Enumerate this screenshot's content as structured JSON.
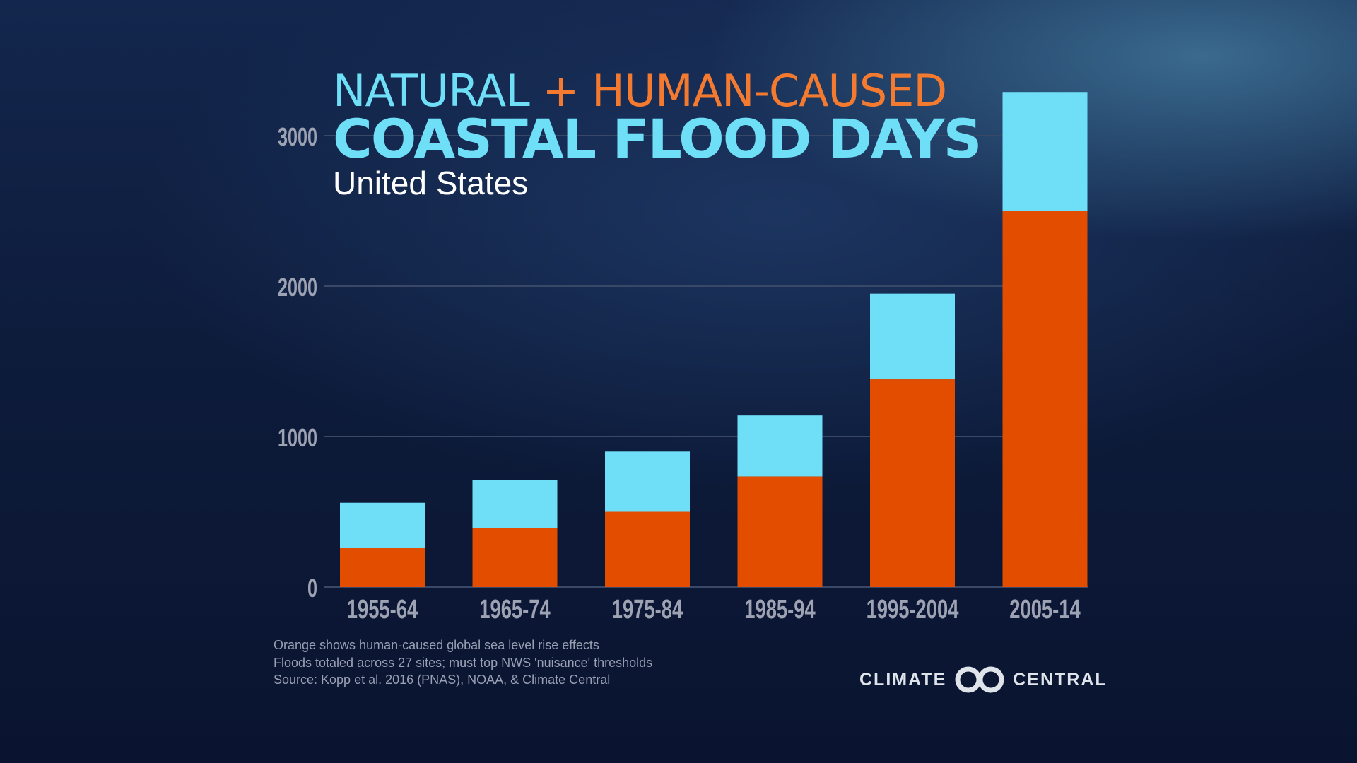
{
  "title": {
    "part1": "NATURAL",
    "plus": "+",
    "part2": "HUMAN-CAUSED",
    "main": "COASTAL FLOOD DAYS",
    "subtitle": "United States"
  },
  "notes": [
    "Orange shows human-caused global sea level rise effects",
    "Floods totaled across 27 sites; must top NWS 'nuisance' thresholds",
    "Source: Kopp et al. 2016 (PNAS), NOAA, & Climate Central"
  ],
  "logo": {
    "left": "CLIMATE",
    "right": "CENTRAL"
  },
  "colors": {
    "natural": "#6fdff7",
    "human": "#e34d00",
    "grid": "#3a4868",
    "tick": "#9ea3b3"
  },
  "chart_data": {
    "type": "bar",
    "stacked": true,
    "title": "COASTAL FLOOD DAYS",
    "categories": [
      "1955-64",
      "1965-74",
      "1975-84",
      "1985-94",
      "1995-2004",
      "2005-14"
    ],
    "series": [
      {
        "key": "human",
        "values": [
          260,
          390,
          500,
          735,
          1380,
          2500
        ]
      },
      {
        "key": "natural",
        "values": [
          300,
          320,
          400,
          405,
          570,
          790
        ]
      }
    ],
    "ylim": [
      0,
      3300
    ],
    "yticks": [
      0,
      1000,
      2000,
      3000
    ],
    "grid": true,
    "xlabel": "",
    "ylabel": ""
  }
}
